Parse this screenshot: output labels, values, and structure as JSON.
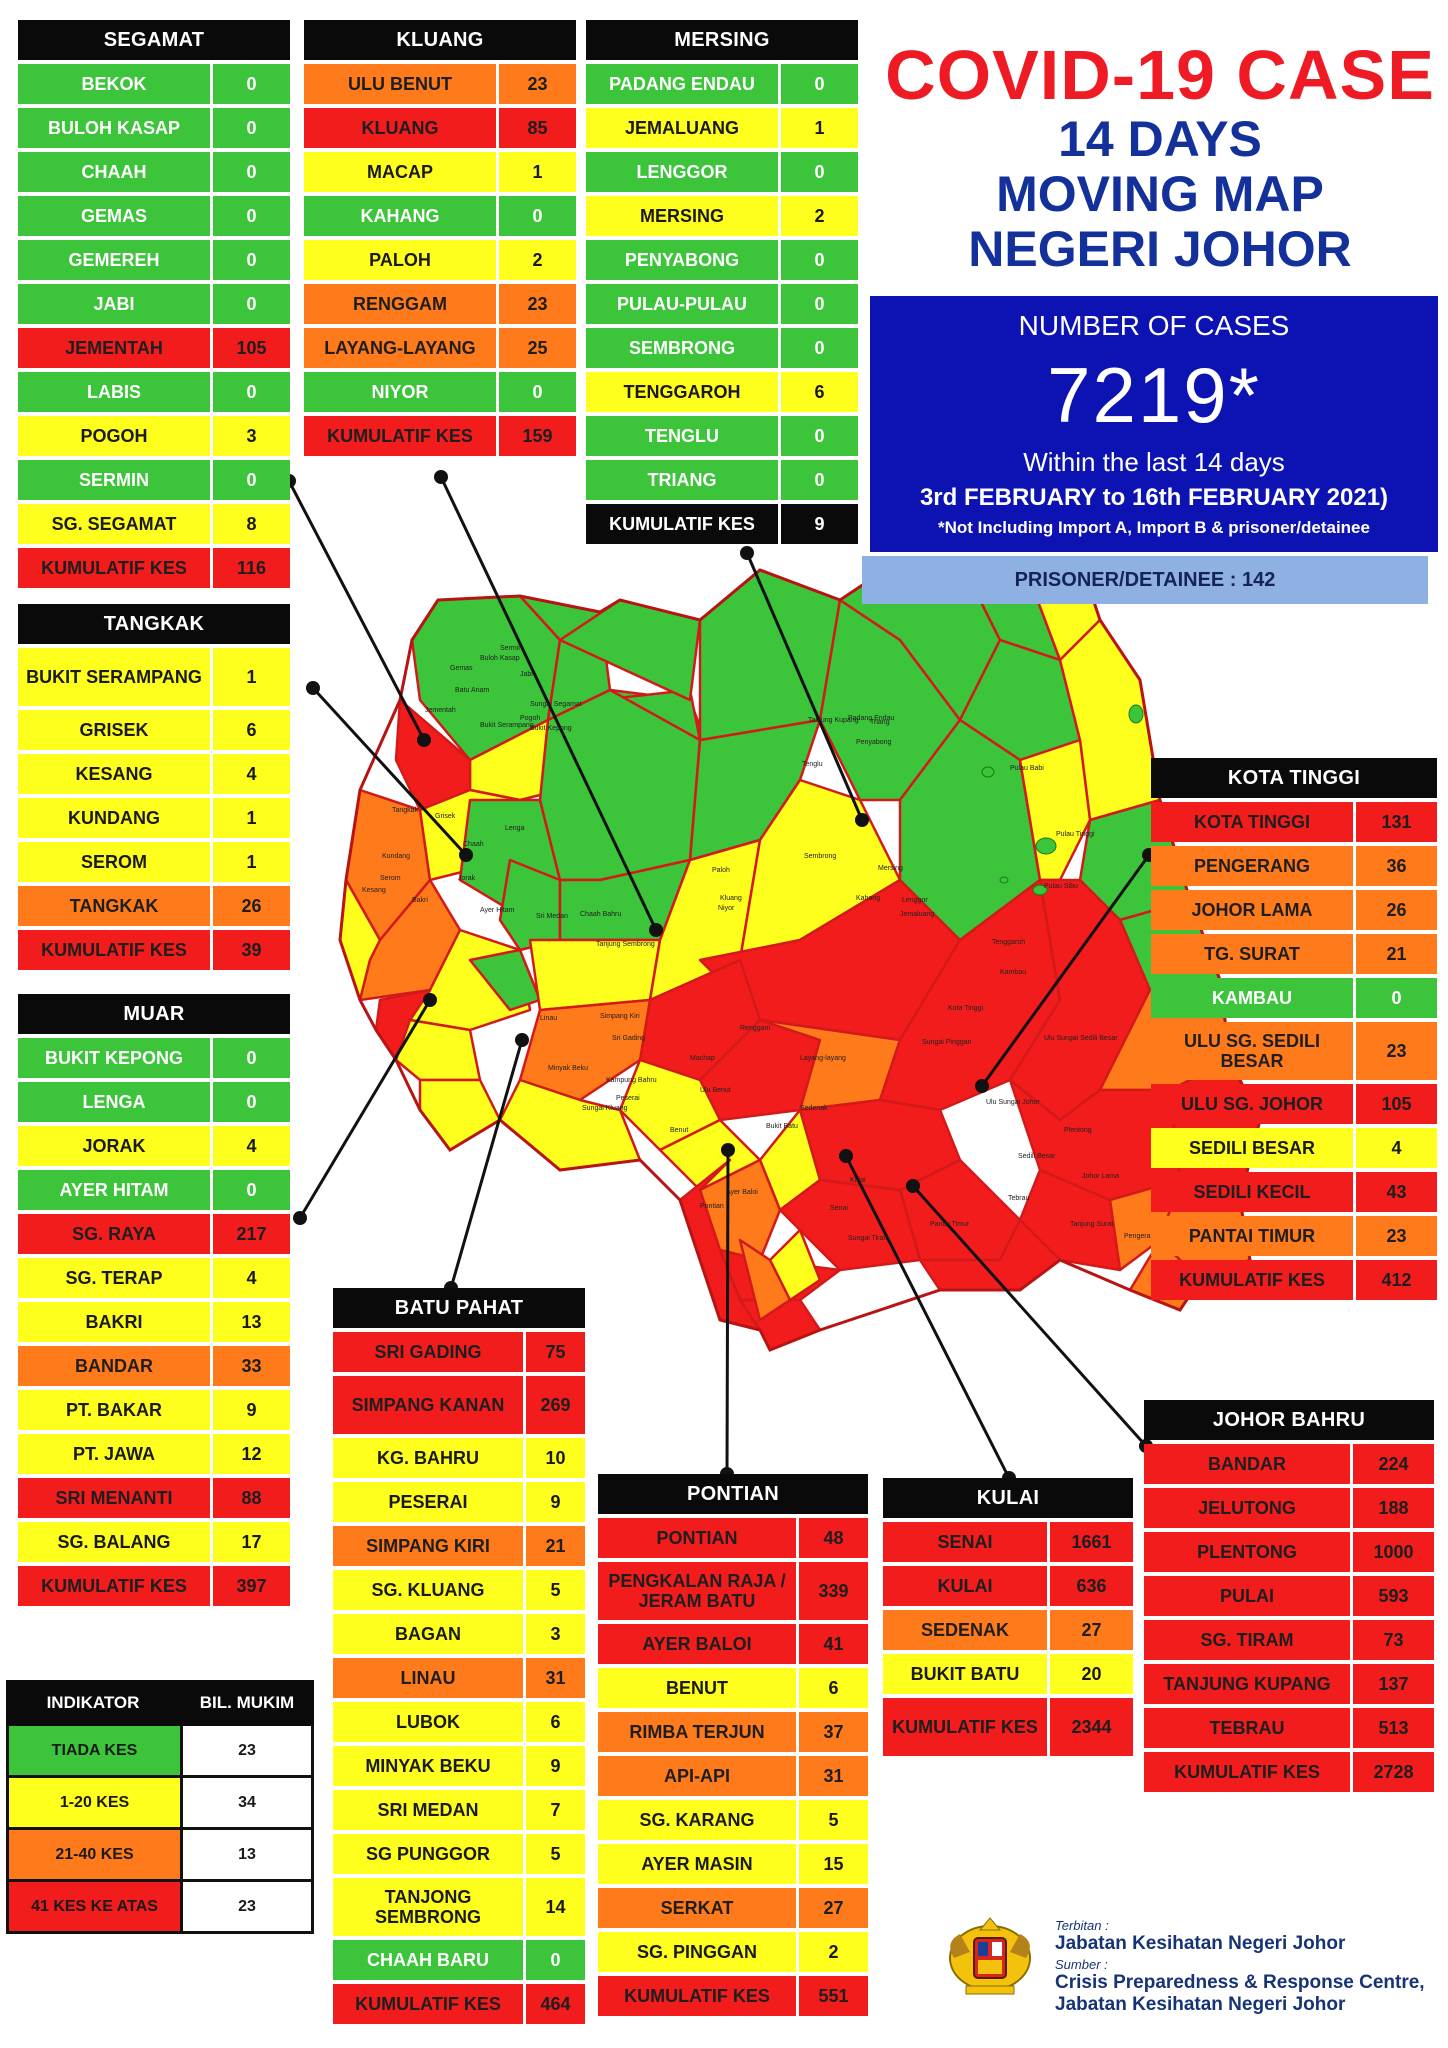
{
  "title": {
    "line1": "COVID-19 CASE",
    "line2": "14 DAYS",
    "line3": "MOVING MAP",
    "line4": "NEGERI JOHOR"
  },
  "summary": {
    "label": "NUMBER OF CASES",
    "value": "7219*",
    "within": "Within the last 14 days",
    "range": "3rd FEBRUARY to 16th FEBRUARY 2021)",
    "note": "*Not Including Import A, Import B & prisoner/detainee",
    "prisoner": "PRISONER/DETAINEE : 142"
  },
  "colors": {
    "green": "#3cc43a",
    "yellow": "#ffff1e",
    "orange": "#ff7a1a",
    "red": "#f21c1c",
    "title_red": "#ee1b24",
    "title_blue": "#14319b",
    "box_blue": "#0d13b2",
    "prisoner_bg": "#8fb0e2"
  },
  "districts": {
    "segamat": {
      "name": "SEGAMAT",
      "rows": [
        {
          "name": "BEKOK",
          "value": "0",
          "level": "green"
        },
        {
          "name": "BULOH KASAP",
          "value": "0",
          "level": "green"
        },
        {
          "name": "CHAAH",
          "value": "0",
          "level": "green"
        },
        {
          "name": "GEMAS",
          "value": "0",
          "level": "green"
        },
        {
          "name": "GEMEREH",
          "value": "0",
          "level": "green"
        },
        {
          "name": "JABI",
          "value": "0",
          "level": "green"
        },
        {
          "name": "JEMENTAH",
          "value": "105",
          "level": "red"
        },
        {
          "name": "LABIS",
          "value": "0",
          "level": "green"
        },
        {
          "name": "POGOH",
          "value": "3",
          "level": "yellow"
        },
        {
          "name": "SERMIN",
          "value": "0",
          "level": "green"
        },
        {
          "name": "SG. SEGAMAT",
          "value": "8",
          "level": "yellow"
        },
        {
          "name": "KUMULATIF KES",
          "value": "116",
          "level": "red"
        }
      ]
    },
    "kluang": {
      "name": "KLUANG",
      "rows": [
        {
          "name": "ULU BENUT",
          "value": "23",
          "level": "orange"
        },
        {
          "name": "KLUANG",
          "value": "85",
          "level": "red"
        },
        {
          "name": "MACAP",
          "value": "1",
          "level": "yellow"
        },
        {
          "name": "KAHANG",
          "value": "0",
          "level": "green"
        },
        {
          "name": "PALOH",
          "value": "2",
          "level": "yellow"
        },
        {
          "name": "RENGGAM",
          "value": "23",
          "level": "orange"
        },
        {
          "name": "LAYANG-LAYANG",
          "value": "25",
          "level": "orange"
        },
        {
          "name": "NIYOR",
          "value": "0",
          "level": "green"
        },
        {
          "name": "KUMULATIF KES",
          "value": "159",
          "level": "red"
        }
      ]
    },
    "mersing": {
      "name": "MERSING",
      "rows": [
        {
          "name": "PADANG ENDAU",
          "value": "0",
          "level": "green"
        },
        {
          "name": "JEMALUANG",
          "value": "1",
          "level": "yellow"
        },
        {
          "name": "LENGGOR",
          "value": "0",
          "level": "green"
        },
        {
          "name": "MERSING",
          "value": "2",
          "level": "yellow"
        },
        {
          "name": "PENYABONG",
          "value": "0",
          "level": "green"
        },
        {
          "name": "PULAU-PULAU",
          "value": "0",
          "level": "green"
        },
        {
          "name": "SEMBRONG",
          "value": "0",
          "level": "green"
        },
        {
          "name": "TENGGAROH",
          "value": "6",
          "level": "yellow"
        },
        {
          "name": "TENGLU",
          "value": "0",
          "level": "green"
        },
        {
          "name": "TRIANG",
          "value": "0",
          "level": "green"
        },
        {
          "name": "KUMULATIF KES",
          "value": "9",
          "level": "black"
        }
      ]
    },
    "tangkak": {
      "name": "TANGKAK",
      "rows": [
        {
          "name": "BUKIT SERAMPANG",
          "value": "1",
          "level": "yellow",
          "tall": true
        },
        {
          "name": "GRISEK",
          "value": "6",
          "level": "yellow"
        },
        {
          "name": "KESANG",
          "value": "4",
          "level": "yellow"
        },
        {
          "name": "KUNDANG",
          "value": "1",
          "level": "yellow"
        },
        {
          "name": "SEROM",
          "value": "1",
          "level": "yellow"
        },
        {
          "name": "TANGKAK",
          "value": "26",
          "level": "orange"
        },
        {
          "name": "KUMULATIF KES",
          "value": "39",
          "level": "red"
        }
      ]
    },
    "muar": {
      "name": "MUAR",
      "rows": [
        {
          "name": "BUKIT KEPONG",
          "value": "0",
          "level": "green"
        },
        {
          "name": "LENGA",
          "value": "0",
          "level": "green"
        },
        {
          "name": "JORAK",
          "value": "4",
          "level": "yellow"
        },
        {
          "name": "AYER HITAM",
          "value": "0",
          "level": "green"
        },
        {
          "name": "SG. RAYA",
          "value": "217",
          "level": "red"
        },
        {
          "name": "SG. TERAP",
          "value": "4",
          "level": "yellow"
        },
        {
          "name": "BAKRI",
          "value": "13",
          "level": "yellow"
        },
        {
          "name": "BANDAR",
          "value": "33",
          "level": "orange"
        },
        {
          "name": "PT. BAKAR",
          "value": "9",
          "level": "yellow"
        },
        {
          "name": "PT. JAWA",
          "value": "12",
          "level": "yellow"
        },
        {
          "name": "SRI MENANTI",
          "value": "88",
          "level": "red"
        },
        {
          "name": "SG. BALANG",
          "value": "17",
          "level": "yellow"
        },
        {
          "name": "KUMULATIF KES",
          "value": "397",
          "level": "red"
        }
      ]
    },
    "batu_pahat": {
      "name": "BATU PAHAT",
      "rows": [
        {
          "name": "SRI GADING",
          "value": "75",
          "level": "red"
        },
        {
          "name": "SIMPANG KANAN",
          "value": "269",
          "level": "red",
          "tall": true
        },
        {
          "name": "KG. BAHRU",
          "value": "10",
          "level": "yellow"
        },
        {
          "name": "PESERAI",
          "value": "9",
          "level": "yellow"
        },
        {
          "name": "SIMPANG KIRI",
          "value": "21",
          "level": "orange"
        },
        {
          "name": "SG. KLUANG",
          "value": "5",
          "level": "yellow"
        },
        {
          "name": "BAGAN",
          "value": "3",
          "level": "yellow"
        },
        {
          "name": "LINAU",
          "value": "31",
          "level": "orange"
        },
        {
          "name": "LUBOK",
          "value": "6",
          "level": "yellow"
        },
        {
          "name": "MINYAK BEKU",
          "value": "9",
          "level": "yellow"
        },
        {
          "name": "SRI MEDAN",
          "value": "7",
          "level": "yellow"
        },
        {
          "name": "SG PUNGGOR",
          "value": "5",
          "level": "yellow"
        },
        {
          "name": "TANJONG SEMBRONG",
          "value": "14",
          "level": "yellow",
          "tall": true
        },
        {
          "name": "CHAAH BARU",
          "value": "0",
          "level": "green"
        },
        {
          "name": "KUMULATIF KES",
          "value": "464",
          "level": "red"
        }
      ]
    },
    "pontian": {
      "name": "PONTIAN",
      "rows": [
        {
          "name": "PONTIAN",
          "value": "48",
          "level": "red"
        },
        {
          "name": "PENGKALAN RAJA / JERAM BATU",
          "value": "339",
          "level": "red",
          "tall": true
        },
        {
          "name": "AYER BALOI",
          "value": "41",
          "level": "red"
        },
        {
          "name": "BENUT",
          "value": "6",
          "level": "yellow"
        },
        {
          "name": "RIMBA TERJUN",
          "value": "37",
          "level": "orange"
        },
        {
          "name": "API-API",
          "value": "31",
          "level": "orange"
        },
        {
          "name": "SG. KARANG",
          "value": "5",
          "level": "yellow"
        },
        {
          "name": "AYER MASIN",
          "value": "15",
          "level": "yellow"
        },
        {
          "name": "SERKAT",
          "value": "27",
          "level": "orange"
        },
        {
          "name": "SG. PINGGAN",
          "value": "2",
          "level": "yellow"
        },
        {
          "name": "KUMULATIF KES",
          "value": "551",
          "level": "red"
        }
      ]
    },
    "kulai": {
      "name": "KULAI",
      "rows": [
        {
          "name": "SENAI",
          "value": "1661",
          "level": "red"
        },
        {
          "name": "KULAI",
          "value": "636",
          "level": "red"
        },
        {
          "name": "SEDENAK",
          "value": "27",
          "level": "orange"
        },
        {
          "name": "BUKIT BATU",
          "value": "20",
          "level": "yellow"
        },
        {
          "name": "KUMULATIF KES",
          "value": "2344",
          "level": "red",
          "tall": true
        }
      ]
    },
    "kota_tinggi": {
      "name": "KOTA TINGGI",
      "rows": [
        {
          "name": "KOTA TINGGI",
          "value": "131",
          "level": "red"
        },
        {
          "name": "PENGERANG",
          "value": "36",
          "level": "orange"
        },
        {
          "name": "JOHOR LAMA",
          "value": "26",
          "level": "orange"
        },
        {
          "name": "TG. SURAT",
          "value": "21",
          "level": "orange"
        },
        {
          "name": "KAMBAU",
          "value": "0",
          "level": "green"
        },
        {
          "name": "ULU SG. SEDILI BESAR",
          "value": "23",
          "level": "orange",
          "tall": true
        },
        {
          "name": "ULU  SG. JOHOR",
          "value": "105",
          "level": "red"
        },
        {
          "name": "SEDILI BESAR",
          "value": "4",
          "level": "yellow"
        },
        {
          "name": "SEDILI KECIL",
          "value": "43",
          "level": "red"
        },
        {
          "name": "PANTAI TIMUR",
          "value": "23",
          "level": "orange"
        },
        {
          "name": "KUMULATIF KES",
          "value": "412",
          "level": "red"
        }
      ]
    },
    "johor_bahru": {
      "name": "JOHOR BAHRU",
      "rows": [
        {
          "name": "BANDAR",
          "value": "224",
          "level": "red"
        },
        {
          "name": "JELUTONG",
          "value": "188",
          "level": "red"
        },
        {
          "name": "PLENTONG",
          "value": "1000",
          "level": "red"
        },
        {
          "name": "PULAI",
          "value": "593",
          "level": "red"
        },
        {
          "name": "SG. TIRAM",
          "value": "73",
          "level": "red"
        },
        {
          "name": "TANJUNG KUPANG",
          "value": "137",
          "level": "red"
        },
        {
          "name": "TEBRAU",
          "value": "513",
          "level": "red"
        },
        {
          "name": "KUMULATIF KES",
          "value": "2728",
          "level": "red"
        }
      ]
    }
  },
  "legend": {
    "col1": "INDIKATOR",
    "col2": "BIL. MUKIM",
    "rows": [
      {
        "label": "TIADA KES",
        "value": "23",
        "level": "green"
      },
      {
        "label": "1-20 KES",
        "value": "34",
        "level": "yellow"
      },
      {
        "label": "21-40 KES",
        "value": "13",
        "level": "orange"
      },
      {
        "label": "41 KES KE ATAS",
        "value": "23",
        "level": "red"
      }
    ]
  },
  "credits": {
    "terbitan_label": "Terbitan :",
    "terbitan": "Jabatan Kesihatan Negeri Johor",
    "sumber_label": "Sumber :",
    "sumber1": "Crisis Preparedness & Response Centre,",
    "sumber2": "Jabatan Kesihatan Negeri Johor"
  },
  "map_labels": [
    "Gemas",
    "Buloh Kasap",
    "Sermin",
    "Batu Anam",
    "Jabi",
    "Sungai Segamat",
    "Jementah",
    "Pogoh",
    "Bukit Serampang",
    "Bukit Kepong",
    "Tangkak",
    "Grisek",
    "Lenga",
    "Chaah",
    "Kundang",
    "Serom",
    "Kesang",
    "Jorak",
    "Bakri",
    "Ayer Hitam",
    "Sri Medan",
    "Chaah Bahru",
    "Tanjung Sembrong",
    "Kluang",
    "Paloh",
    "Niyor",
    "Renggam",
    "Sri Gading",
    "Linau",
    "Machap",
    "Ulu Benut",
    "Layang-layang",
    "Sedenak",
    "Bukit Batu",
    "Senai",
    "Kulai",
    "Pontian",
    "Ayer Baloi",
    "Benut",
    "Sungai Pinggan",
    "Ulu Sungai Johor",
    "Kota Tinggi",
    "Ulu Sungai Sedili Besar",
    "Sedili Besar",
    "Johor Lama",
    "Tanjung Surat",
    "Pengerang",
    "Pantai Timur",
    "Tebrau",
    "Plentong",
    "Sungai Tiram",
    "Tanjung Kupang",
    "Padang Endau",
    "Triang",
    "Penyabong",
    "Tenglu",
    "Sembrong",
    "Mersing",
    "Kahang",
    "Lenggor",
    "Jemaluang",
    "Tenggaroh",
    "Kambau",
    "Pulau Babi",
    "Pulau Tinggi",
    "Pulau Sibu",
    "Simpang Kiri",
    "Kampung Bahru",
    "Minyak Beku",
    "Peserai",
    "Sungai Kluang"
  ]
}
